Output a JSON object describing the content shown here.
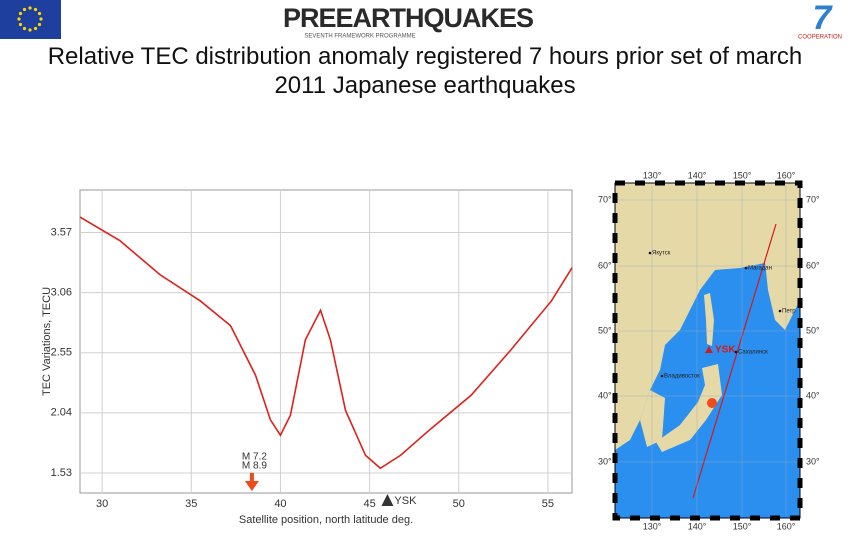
{
  "header": {
    "logo_text": "PREEARTHQUAKES",
    "logo_subtext": "SEVENTH FRAMEWORK PROGRAMME",
    "right_logo_text": "COOPERATION",
    "title": "Relative TEC distribution anomaly registered 7 hours prior set of march 2011 Japanese earthquakes"
  },
  "chart_data": {
    "type": "line",
    "x_label": "Satellite position, north latitude deg.",
    "y_label": "TEC Variations, TECU",
    "series": [
      {
        "name": "TEC",
        "color": "#e0201b",
        "x": [
          28.76,
          31.0,
          33.26,
          35.5,
          37.2,
          38.6,
          39.44,
          40.0,
          40.56,
          41.4,
          42.25,
          42.8,
          43.65,
          44.77,
          45.6,
          46.74,
          48.4,
          50.7,
          52.9,
          55.2,
          56.35
        ],
        "values": [
          3.7,
          3.5,
          3.21,
          2.99,
          2.78,
          2.36,
          1.98,
          1.85,
          2.02,
          2.66,
          2.91,
          2.66,
          2.06,
          1.68,
          1.57,
          1.68,
          1.9,
          2.19,
          2.57,
          2.99,
          3.27
        ]
      }
    ],
    "xlim": [
      28.76,
      56.35
    ],
    "xticks": [
      30,
      35,
      40,
      45,
      50,
      55
    ],
    "ylim": [
      1.36,
      3.93
    ],
    "yticks": [
      3.57,
      3.06,
      2.55,
      2.04,
      1.53
    ],
    "grid": true,
    "annotations": [
      {
        "x": 38.4,
        "labels": [
          "M 7.2",
          "M 8.9"
        ],
        "color": "#f04a1a",
        "marker": "arrow"
      },
      {
        "x": 46.0,
        "label": "YSK",
        "color": "#333333",
        "marker": "triangle"
      }
    ]
  },
  "map": {
    "lon_labels": [
      "130°",
      "140°",
      "150°",
      "160°"
    ],
    "lat_labels": [
      "70°",
      "60°",
      "50°",
      "40°",
      "30°"
    ],
    "places": [
      "Якутск",
      "Магадан",
      "Петр",
      "YSK",
      "Сахалинск",
      "Владивосток"
    ]
  }
}
